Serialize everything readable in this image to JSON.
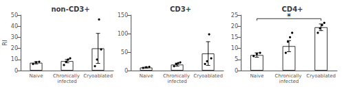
{
  "chart_data": [
    {
      "type": "bar",
      "title": "non-CD3+",
      "ylabel": "RI",
      "categories": [
        "Naive",
        "Chronically infected",
        "Cryoablated"
      ],
      "values": [
        7,
        8.5,
        20
      ],
      "errors": [
        1.0,
        1.5,
        13.5
      ],
      "points": [
        [
          6.0,
          7.5,
          8.0
        ],
        [
          5.0,
          8.0,
          10.0,
          11.0
        ],
        [
          4.0,
          10.0,
          46.0,
          19.0
        ]
      ],
      "color": "#ffffff",
      "ylim": [
        0,
        50
      ],
      "yticks": [
        0,
        10,
        20,
        30,
        40,
        50
      ],
      "grid": false
    },
    {
      "type": "bar",
      "title": "CD3+",
      "categories": [
        "Naive",
        "Chronically infected",
        "Cryoablated"
      ],
      "values": [
        8,
        16,
        46
      ],
      "errors": [
        1.5,
        4.0,
        32.0
      ],
      "points": [
        [
          7.0,
          9.0,
          10.0
        ],
        [
          12.0,
          18.0,
          20.0,
          22.0
        ],
        [
          18.0,
          25.0,
          98.0,
          33.0
        ]
      ],
      "color": "#ffffff",
      "ylim": [
        0,
        150
      ],
      "yticks": [
        0,
        50,
        100,
        150
      ],
      "grid": false
    },
    {
      "type": "bar",
      "title": "CD4+",
      "categories": [
        "Naive",
        "Chronically infected",
        "Cryoablated"
      ],
      "values": [
        7.0,
        11.0,
        19.5
      ],
      "errors": [
        1.0,
        2.5,
        1.5
      ],
      "points": [
        [
          6.5,
          7.5,
          8.0
        ],
        [
          8.0,
          13.0,
          15.0,
          17.0
        ],
        [
          17.0,
          19.0,
          20.5,
          21.5
        ]
      ],
      "color": "#ffffff",
      "ylim": [
        0,
        25
      ],
      "yticks": [
        0,
        5,
        10,
        15,
        20,
        25
      ],
      "grid": false,
      "annotations": [
        {
          "text": "*",
          "between": [
            "Naive",
            "Cryoablated"
          ]
        }
      ]
    }
  ]
}
